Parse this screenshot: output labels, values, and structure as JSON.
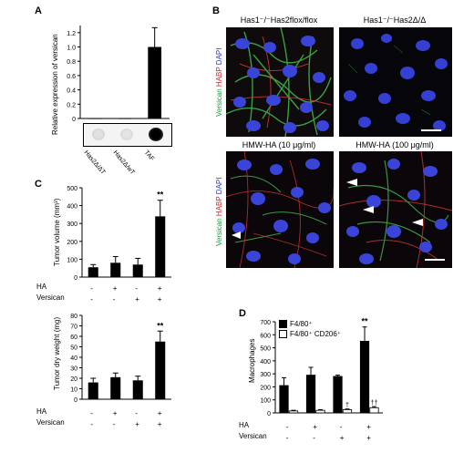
{
  "panels": {
    "A": {
      "letter": "A",
      "ylabel": "Relative expression of versican",
      "blot_labels": [
        "Has2Δ/ΔT",
        "Has2Δ/wT",
        "TAF"
      ],
      "chart_data": {
        "type": "bar",
        "categories": [
          "Has2Δ/ΔT",
          "Has2Δ/wT",
          "TAF"
        ],
        "values": [
          0.0,
          0.0,
          1.0
        ],
        "errors": [
          0.0,
          0.0,
          0.27
        ],
        "yticks": [
          "0",
          "0.2",
          "0.4",
          "0.6",
          "0.8",
          "1.0",
          "1.2"
        ],
        "ylim": [
          0,
          1.3
        ]
      }
    },
    "B": {
      "letter": "B",
      "titles": {
        "tl": "Has1⁻/⁻Has2flox/flox",
        "tr": "Has1⁻/⁻Has2Δ/Δ",
        "bl": "HMW-HA (10 μg/ml)",
        "br": "HMW-HA (100 μg/ml)"
      },
      "stain": {
        "versican": "Versican",
        "habp": "HABP",
        "dapi": "DAPI"
      },
      "stain_colors": {
        "versican": "#1a9b3c",
        "habp": "#d2232a",
        "dapi": "#2b35c8"
      }
    },
    "C": {
      "letter": "C",
      "row_labels": {
        "ha": "HA",
        "versican": "Versican"
      },
      "row_signs": {
        "ha": [
          "-",
          "+",
          "-",
          "+"
        ],
        "versican": [
          "-",
          "-",
          "+",
          "+"
        ]
      },
      "top": {
        "ylabel": "Tumor volume (mm³)",
        "yticks": [
          "0",
          "100",
          "200",
          "300",
          "400",
          "500"
        ],
        "significance": "**",
        "chart_data": {
          "type": "bar",
          "categories": [
            "1",
            "2",
            "3",
            "4"
          ],
          "values": [
            55,
            80,
            70,
            340
          ],
          "errors": [
            15,
            35,
            35,
            90
          ],
          "ylim": [
            0,
            500
          ]
        }
      },
      "bottom": {
        "ylabel": "Tumor dry weight (mg)",
        "yticks": [
          "0",
          "10",
          "20",
          "30",
          "40",
          "50",
          "60",
          "70",
          "80"
        ],
        "significance": "**",
        "chart_data": {
          "type": "bar",
          "categories": [
            "1",
            "2",
            "3",
            "4"
          ],
          "values": [
            16,
            21,
            18,
            55
          ],
          "errors": [
            4,
            4,
            4,
            10
          ],
          "ylim": [
            0,
            80
          ]
        }
      }
    },
    "D": {
      "letter": "D",
      "ylabel": "Macrophages",
      "yticks": [
        "0",
        "100",
        "200",
        "300",
        "400",
        "500",
        "600",
        "700"
      ],
      "legend": {
        "s1": "F4/80⁺",
        "s2": "F4/80⁺ CD206⁺"
      },
      "row_labels": {
        "ha": "HA",
        "versican": "Versican"
      },
      "row_signs": {
        "ha": [
          "-",
          "+",
          "-",
          "+"
        ],
        "versican": [
          "-",
          "-",
          "+",
          "+"
        ]
      },
      "annotations": {
        "star": "**",
        "dagger": "†",
        "double_dagger": "††"
      },
      "chart_data": {
        "type": "bar",
        "categories": [
          "1",
          "2",
          "3",
          "4"
        ],
        "series": [
          {
            "name": "F4/80⁺",
            "values": [
              210,
              290,
              280,
              550
            ],
            "errors": [
              60,
              60,
              10,
              110
            ]
          },
          {
            "name": "F4/80⁺ CD206⁺",
            "values": [
              15,
              20,
              25,
              40
            ],
            "errors": [
              5,
              5,
              5,
              8
            ]
          }
        ],
        "ylim": [
          0,
          700
        ],
        "legend_position": "top-left"
      }
    }
  }
}
